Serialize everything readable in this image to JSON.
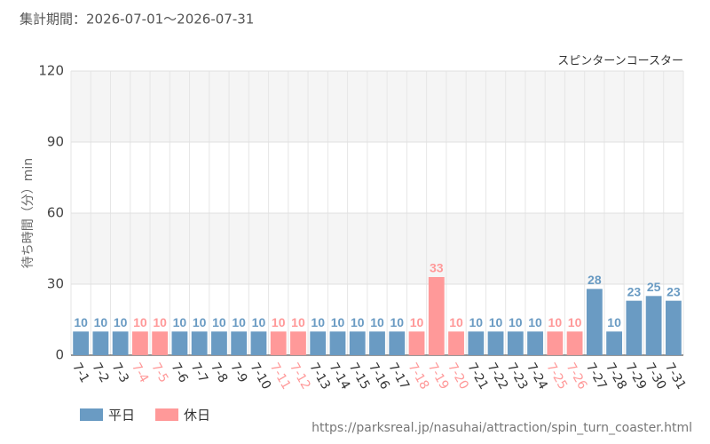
{
  "chart_data": {
    "type": "bar",
    "title": "集計期間：2026-07-01～2026-07-31",
    "subtitle": "スピンターンコースター",
    "y_label": "待ち時間（分）min",
    "source": "https://parksreal.jp/nasuhai/attraction/spin_turn_coaster.html",
    "categories": [
      "7-1",
      "7-2",
      "7-3",
      "7-4",
      "7-5",
      "7-6",
      "7-7",
      "7-8",
      "7-9",
      "7-10",
      "7-11",
      "7-12",
      "7-13",
      "7-14",
      "7-15",
      "7-16",
      "7-17",
      "7-18",
      "7-19",
      "7-20",
      "7-21",
      "7-22",
      "7-23",
      "7-24",
      "7-25",
      "7-26",
      "7-27",
      "7-28",
      "7-29",
      "7-30",
      "7-31"
    ],
    "series": [
      {
        "name": "平日",
        "color": "#6a9bc3",
        "values": [
          10,
          10,
          10,
          null,
          null,
          10,
          10,
          10,
          10,
          10,
          null,
          null,
          10,
          10,
          10,
          10,
          10,
          null,
          null,
          null,
          10,
          10,
          10,
          10,
          null,
          null,
          28,
          10,
          23,
          25,
          23
        ]
      },
      {
        "name": "休日",
        "color": "#ff9999",
        "values": [
          null,
          null,
          null,
          10,
          10,
          null,
          null,
          null,
          null,
          null,
          10,
          10,
          null,
          null,
          null,
          null,
          null,
          10,
          33,
          10,
          null,
          null,
          null,
          null,
          10,
          10,
          null,
          null,
          null,
          null,
          null
        ]
      }
    ],
    "ylim": [
      0,
      120
    ],
    "yticks": [
      0,
      30,
      60,
      90,
      120
    ],
    "grid": true
  }
}
